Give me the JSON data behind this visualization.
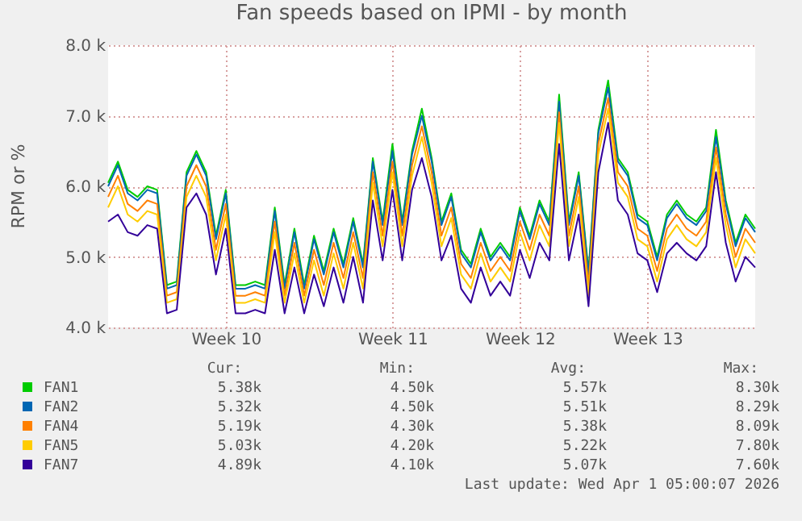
{
  "chart_data": {
    "type": "line",
    "title": "Fan speeds based on IPMI - by month",
    "ylabel": "RPM or %",
    "legend": "bottom",
    "grid": true,
    "line_style": "solid",
    "marker": "none",
    "categories": [
      null,
      null,
      null,
      null,
      null,
      null,
      null,
      null,
      null,
      null,
      null,
      null,
      "Week 10",
      null,
      null,
      null,
      null,
      null,
      null,
      null,
      null,
      null,
      null,
      null,
      null,
      null,
      null,
      null,
      null,
      "Week 11",
      null,
      null,
      null,
      null,
      null,
      null,
      null,
      null,
      null,
      null,
      null,
      null,
      "Week 12",
      null,
      null,
      null,
      null,
      null,
      null,
      null,
      null,
      null,
      null,
      null,
      null,
      "Week 13",
      null,
      null,
      null,
      null,
      null,
      null,
      null,
      null,
      null,
      null,
      null
    ],
    "ylim": [
      4.0,
      8.0
    ],
    "yticks": [
      {
        "value": 4.0,
        "label": "4.0 k"
      },
      {
        "value": 5.0,
        "label": "5.0 k"
      },
      {
        "value": 6.0,
        "label": "6.0 k"
      },
      {
        "value": 7.0,
        "label": "7.0 k"
      },
      {
        "value": 8.0,
        "label": "8.0 k"
      }
    ],
    "series": [
      {
        "name": "FAN1",
        "color": "#00cc00",
        "values": [
          6.05,
          6.35,
          5.95,
          5.85,
          6.0,
          5.95,
          4.6,
          4.65,
          6.2,
          6.5,
          6.2,
          5.3,
          5.95,
          4.6,
          4.6,
          4.65,
          4.6,
          5.7,
          4.6,
          5.4,
          4.6,
          5.3,
          4.8,
          5.4,
          4.9,
          5.55,
          4.9,
          6.4,
          5.5,
          6.6,
          5.5,
          6.5,
          7.1,
          6.4,
          5.5,
          5.9,
          5.1,
          4.9,
          5.4,
          5.0,
          5.2,
          5.0,
          5.7,
          5.3,
          5.8,
          5.5,
          7.3,
          5.5,
          6.2,
          4.8,
          6.8,
          7.5,
          6.4,
          6.2,
          5.6,
          5.5,
          5.0,
          5.6,
          5.8,
          5.6,
          5.5,
          5.7,
          6.8,
          5.8,
          5.2,
          5.6,
          5.4
        ]
      },
      {
        "name": "FAN2",
        "color": "#0066b3",
        "values": [
          6.0,
          6.3,
          5.9,
          5.8,
          5.95,
          5.9,
          4.55,
          4.6,
          6.15,
          6.45,
          6.15,
          5.25,
          5.9,
          4.55,
          4.55,
          4.6,
          4.55,
          5.65,
          4.55,
          5.35,
          4.55,
          5.25,
          4.75,
          5.35,
          4.85,
          5.5,
          4.85,
          6.35,
          5.45,
          6.5,
          5.45,
          6.45,
          7.0,
          6.35,
          5.45,
          5.85,
          5.05,
          4.85,
          5.35,
          4.95,
          5.15,
          4.95,
          5.65,
          5.25,
          5.75,
          5.45,
          7.2,
          5.45,
          6.15,
          4.75,
          6.75,
          7.4,
          6.35,
          6.15,
          5.55,
          5.45,
          4.95,
          5.55,
          5.75,
          5.55,
          5.45,
          5.65,
          6.7,
          5.75,
          5.15,
          5.55,
          5.35
        ]
      },
      {
        "name": "FAN4",
        "color": "#ff8000",
        "values": [
          5.85,
          6.15,
          5.75,
          5.65,
          5.8,
          5.75,
          4.45,
          4.5,
          6.0,
          6.3,
          6.0,
          5.1,
          5.75,
          4.45,
          4.45,
          4.5,
          4.45,
          5.5,
          4.45,
          5.2,
          4.45,
          5.1,
          4.6,
          5.2,
          4.7,
          5.35,
          4.7,
          6.2,
          5.3,
          6.35,
          5.3,
          6.3,
          6.85,
          6.2,
          5.3,
          5.7,
          4.9,
          4.7,
          5.2,
          4.8,
          5.0,
          4.8,
          5.5,
          5.1,
          5.6,
          5.3,
          7.05,
          5.3,
          6.0,
          4.6,
          6.6,
          7.25,
          6.2,
          6.0,
          5.4,
          5.3,
          4.8,
          5.4,
          5.6,
          5.4,
          5.3,
          5.5,
          6.55,
          5.6,
          5.0,
          5.4,
          5.2
        ]
      },
      {
        "name": "FAN5",
        "color": "#ffcc00",
        "values": [
          5.7,
          6.0,
          5.6,
          5.5,
          5.65,
          5.6,
          4.35,
          4.4,
          5.85,
          6.15,
          5.85,
          4.95,
          5.6,
          4.35,
          4.35,
          4.4,
          4.35,
          5.35,
          4.35,
          5.05,
          4.35,
          4.95,
          4.45,
          5.05,
          4.55,
          5.2,
          4.55,
          6.05,
          5.15,
          6.2,
          5.15,
          6.15,
          6.7,
          6.05,
          5.15,
          5.55,
          4.75,
          4.55,
          5.05,
          4.65,
          4.85,
          4.65,
          5.35,
          4.95,
          5.45,
          5.15,
          6.9,
          5.15,
          5.85,
          4.45,
          6.45,
          7.1,
          6.05,
          5.85,
          5.25,
          5.15,
          4.65,
          5.25,
          5.45,
          5.25,
          5.15,
          5.35,
          6.4,
          5.45,
          4.85,
          5.25,
          5.05
        ]
      },
      {
        "name": "FAN7",
        "color": "#330099",
        "values": [
          5.5,
          5.6,
          5.35,
          5.3,
          5.45,
          5.4,
          4.2,
          4.25,
          5.7,
          5.9,
          5.6,
          4.75,
          5.4,
          4.2,
          4.2,
          4.25,
          4.2,
          5.1,
          4.2,
          4.85,
          4.2,
          4.75,
          4.3,
          4.85,
          4.35,
          5.0,
          4.35,
          5.8,
          4.95,
          5.95,
          4.95,
          5.95,
          6.4,
          5.85,
          4.95,
          5.3,
          4.55,
          4.35,
          4.85,
          4.45,
          4.65,
          4.45,
          5.1,
          4.7,
          5.2,
          4.95,
          6.6,
          4.95,
          5.6,
          4.3,
          6.2,
          6.9,
          5.8,
          5.6,
          5.05,
          4.95,
          4.5,
          5.05,
          5.2,
          5.05,
          4.95,
          5.15,
          6.2,
          5.2,
          4.65,
          5.0,
          4.85
        ]
      }
    ],
    "annotations": [
      "Cur:",
      "Min:",
      "Avg:",
      "Max:",
      "5.38k",
      "4.50k",
      "5.57k",
      "8.30k",
      "5.32k",
      "4.50k",
      "5.51k",
      "8.29k",
      "5.19k",
      "4.30k",
      "5.38k",
      "8.09k",
      "5.03k",
      "4.20k",
      "5.22k",
      "7.80k",
      "4.89k",
      "4.10k",
      "5.07k",
      "7.60k",
      "Last update: Wed Apr  1 05:00:07 2026"
    ]
  }
}
